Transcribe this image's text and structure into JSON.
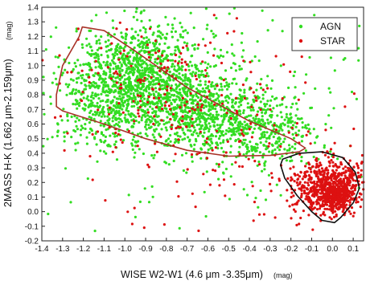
{
  "chart_data": {
    "type": "scatter",
    "xlabel": "WISE W2-W1 (4.6 μm -3.35μm)",
    "xlabel_unit": "(mag)",
    "ylabel": "2MASS H-K (1.662 μm-2.159μm)",
    "ylabel_unit": "(mag)",
    "xlim": [
      -1.4,
      0.15
    ],
    "ylim": [
      -0.2,
      1.4
    ],
    "xticks": [
      "-1.4",
      "-1.3",
      "-1.2",
      "-1.1",
      "-1.0",
      "-0.9",
      "-0.8",
      "-0.7",
      "-0.6",
      "-0.5",
      "-0.4",
      "-0.3",
      "-0.2",
      "-0.1",
      "0.0",
      "0.1"
    ],
    "yticks": [
      "-0.2",
      "-0.1",
      "0.0",
      "0.1",
      "0.2",
      "0.3",
      "0.4",
      "0.5",
      "0.6",
      "0.7",
      "0.8",
      "0.9",
      "1.0",
      "1.1",
      "1.2",
      "1.3",
      "1.4"
    ],
    "grid": false,
    "legend_position": "top-right",
    "colors": {
      "AGN": "#33dd22",
      "STAR": "#dd1111",
      "agn_region_outline": "#a83228",
      "star_region_outline": "#111111"
    },
    "series": [
      {
        "name": "AGN",
        "clusters": [
          {
            "cx": -0.92,
            "cy": 0.93,
            "sx": 0.17,
            "sy": 0.17,
            "n": 1100
          },
          {
            "cx": -0.62,
            "cy": 0.66,
            "sx": 0.17,
            "sy": 0.13,
            "n": 650
          },
          {
            "cx": -0.32,
            "cy": 0.52,
            "sx": 0.12,
            "sy": 0.12,
            "n": 260
          },
          {
            "cx": -1.12,
            "cy": 0.68,
            "sx": 0.12,
            "sy": 0.14,
            "n": 220
          },
          {
            "cx": -0.55,
            "cy": 0.8,
            "sx": 0.45,
            "sy": 0.38,
            "n": 300
          }
        ]
      },
      {
        "name": "STAR",
        "clusters": [
          {
            "cx": -0.02,
            "cy": 0.18,
            "sx": 0.085,
            "sy": 0.09,
            "n": 650
          },
          {
            "cx": 0.02,
            "cy": 0.1,
            "sx": 0.04,
            "sy": 0.05,
            "n": 260
          },
          {
            "cx": -0.8,
            "cy": 0.85,
            "sx": 0.28,
            "sy": 0.22,
            "n": 220
          },
          {
            "cx": -0.35,
            "cy": 0.4,
            "sx": 0.35,
            "sy": 0.28,
            "n": 110
          }
        ]
      }
    ],
    "regions": [
      {
        "name": "AGN region",
        "points": [
          [
            -1.205,
            1.265
          ],
          [
            -1.22,
            1.2
          ],
          [
            -1.3,
            1.0
          ],
          [
            -1.33,
            0.8
          ],
          [
            -1.33,
            0.72
          ],
          [
            -1.3,
            0.69
          ],
          [
            -1.1,
            0.6
          ],
          [
            -0.9,
            0.5
          ],
          [
            -0.7,
            0.42
          ],
          [
            -0.5,
            0.38
          ],
          [
            -0.3,
            0.385
          ],
          [
            -0.16,
            0.41
          ],
          [
            -0.13,
            0.435
          ],
          [
            -0.2,
            0.5
          ],
          [
            -0.4,
            0.62
          ],
          [
            -0.7,
            0.85
          ],
          [
            -0.95,
            1.1
          ],
          [
            -1.1,
            1.24
          ],
          [
            -1.205,
            1.265
          ]
        ]
      },
      {
        "name": "STAR region",
        "points": [
          [
            -0.25,
            0.32
          ],
          [
            -0.24,
            0.36
          ],
          [
            -0.16,
            0.4
          ],
          [
            -0.05,
            0.41
          ],
          [
            0.05,
            0.37
          ],
          [
            0.11,
            0.27
          ],
          [
            0.13,
            0.16
          ],
          [
            0.1,
            0.06
          ],
          [
            0.04,
            -0.04
          ],
          [
            0.01,
            -0.075
          ],
          [
            -0.05,
            -0.06
          ],
          [
            -0.1,
            -0.0
          ],
          [
            -0.17,
            0.11
          ],
          [
            -0.23,
            0.23
          ],
          [
            -0.25,
            0.32
          ]
        ]
      }
    ],
    "legend": [
      "AGN",
      "STAR"
    ]
  }
}
